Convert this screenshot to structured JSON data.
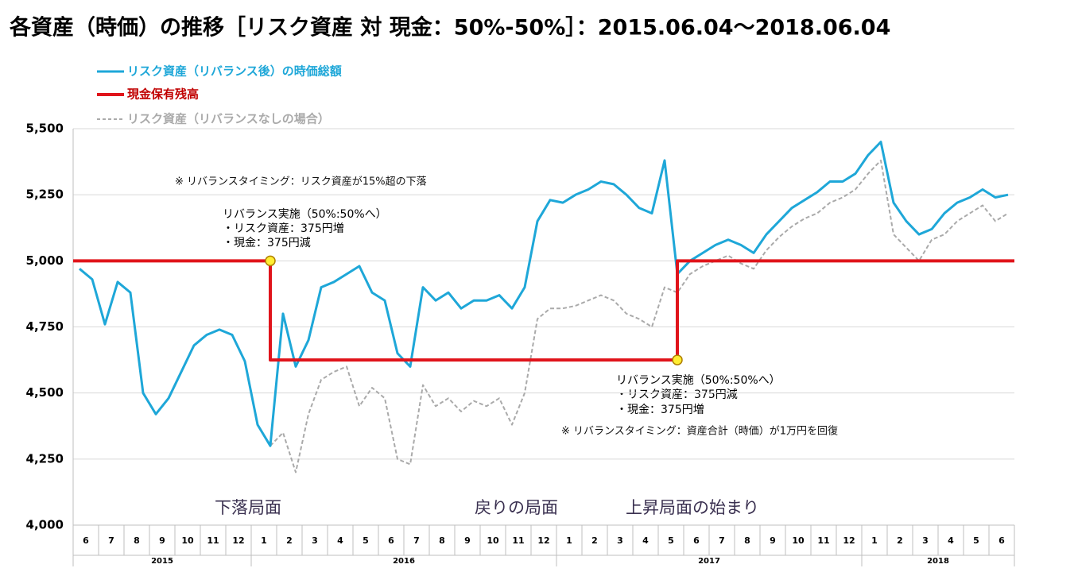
{
  "chart_data": {
    "type": "line",
    "title": "各資産（時価）の推移［リスク資産 対 現金：50%-50%］：2015.06.04～2018.06.04",
    "categories": [
      "6",
      null,
      "7",
      null,
      "8",
      null,
      "9",
      null,
      "10",
      null,
      "11",
      null,
      "12",
      null,
      "1",
      null,
      "2",
      null,
      "3",
      null,
      "4",
      null,
      "5",
      null,
      "6",
      null,
      "7",
      null,
      "8",
      null,
      "9",
      null,
      "10",
      null,
      "11",
      null,
      "12",
      null,
      "1",
      null,
      "2",
      null,
      "3",
      null,
      "4",
      null,
      "5",
      null,
      "6",
      null,
      "7",
      null,
      "8",
      null,
      "9",
      null,
      "10",
      null,
      "11",
      null,
      "12",
      null,
      "1",
      null,
      "2",
      null,
      "3",
      null,
      "4",
      null,
      "5",
      null,
      "6",
      null
    ],
    "years": [
      "2015",
      "2016",
      "2017",
      "2018"
    ],
    "series": [
      {
        "name": "リスク資産（リバランス後）の時価総額",
        "color": "#1ea7d8",
        "dash": false,
        "values": [
          4970,
          4930,
          4760,
          4920,
          4880,
          4500,
          4420,
          4480,
          4580,
          4680,
          4720,
          4740,
          4720,
          4620,
          4380,
          4300,
          4800,
          4600,
          4700,
          4900,
          4920,
          4950,
          4980,
          4880,
          4850,
          4650,
          4600,
          4900,
          4850,
          4880,
          4820,
          4850,
          4850,
          4870,
          4820,
          4900,
          5150,
          5230,
          5220,
          5250,
          5270,
          5300,
          5290,
          5250,
          5200,
          5180,
          5380,
          4950,
          5000,
          5030,
          5060,
          5080,
          5060,
          5030,
          5100,
          5150,
          5200,
          5230,
          5260,
          5300,
          5300,
          5330,
          5400,
          5450,
          5220,
          5150,
          5100,
          5120,
          5180,
          5220,
          5240,
          5270,
          5240,
          5250
        ]
      },
      {
        "name": "現金保有残高",
        "color": "#e0141b",
        "dash": false,
        "step": true,
        "values": [
          5000,
          5000,
          5000,
          5000,
          5000,
          5000,
          5000,
          5000,
          5000,
          5000,
          5000,
          5000,
          5000,
          5000,
          5000,
          4625,
          4625,
          4625,
          4625,
          4625,
          4625,
          4625,
          4625,
          4625,
          4625,
          4625,
          4625,
          4625,
          4625,
          4625,
          4625,
          4625,
          4625,
          4625,
          4625,
          4625,
          4625,
          4625,
          4625,
          4625,
          4625,
          4625,
          4625,
          4625,
          4625,
          4625,
          4625,
          5000,
          5000,
          5000,
          5000,
          5000,
          5000,
          5000,
          5000,
          5000,
          5000,
          5000,
          5000,
          5000,
          5000,
          5000,
          5000,
          5000,
          5000,
          5000,
          5000,
          5000,
          5000,
          5000,
          5000,
          5000,
          5000,
          5000
        ]
      },
      {
        "name": "リスク資産（リバランスなしの場合）",
        "color": "#aaaaaa",
        "dash": true,
        "values": [
          null,
          null,
          null,
          null,
          null,
          null,
          null,
          null,
          null,
          null,
          null,
          null,
          null,
          null,
          null,
          4300,
          4350,
          4200,
          4420,
          4550,
          4580,
          4600,
          4450,
          4520,
          4480,
          4250,
          4230,
          4530,
          4450,
          4480,
          4430,
          4470,
          4450,
          4480,
          4380,
          4500,
          4780,
          4820,
          4820,
          4830,
          4850,
          4870,
          4850,
          4800,
          4780,
          4750,
          4900,
          4880,
          4950,
          4980,
          5000,
          5020,
          4990,
          4970,
          5040,
          5090,
          5130,
          5160,
          5180,
          5220,
          5240,
          5270,
          5330,
          5380,
          5100,
          5050,
          5000,
          5080,
          5100,
          5150,
          5180,
          5210,
          5150,
          5180
        ]
      }
    ],
    "ylim": [
      4000,
      5500
    ],
    "yticks": [
      {
        "value": 4000,
        "label": "4,000"
      },
      {
        "value": 4250,
        "label": "4,250"
      },
      {
        "value": 4500,
        "label": "4,500"
      },
      {
        "value": 4750,
        "label": "4,750"
      },
      {
        "value": 5000,
        "label": "5,000"
      },
      {
        "value": 5250,
        "label": "5,250"
      },
      {
        "value": 5500,
        "label": "5,500"
      }
    ],
    "grid": true,
    "legend": "top-left",
    "annotations": [
      "※ リバランスタイミング：リスク資産が15%超の下落",
      "リバランス実施（50%:50%へ）",
      "・リスク資産：375円増",
      "・現金：375円減",
      "リバランス実施（50%:50%へ）",
      "・リスク資産：375円減",
      "・現金：375円増",
      "※ リバランスタイミング：資産合計（時価）が1万円を回復",
      "下落局面",
      "戻りの局面",
      "上昇局面の始まり"
    ]
  }
}
